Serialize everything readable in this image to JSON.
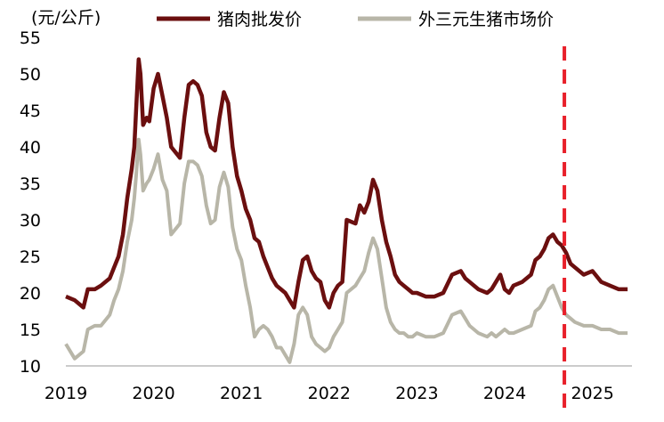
{
  "chart_data": {
    "type": "line",
    "ylabel": "(元/公斤)",
    "ylim": [
      10,
      55
    ],
    "yticks": [
      10,
      15,
      20,
      25,
      30,
      35,
      40,
      45,
      50,
      55
    ],
    "xlim": [
      2019.0,
      2025.45
    ],
    "xticks": [
      "2019",
      "2020",
      "2021",
      "2022",
      "2023",
      "2024",
      "2025"
    ],
    "grid": false,
    "legend_position": "top",
    "series": [
      {
        "name": "猪肉批发价",
        "color": "#6b0f0f",
        "x": [
          2019.0,
          2019.1,
          2019.2,
          2019.25,
          2019.33,
          2019.4,
          2019.5,
          2019.55,
          2019.6,
          2019.65,
          2019.7,
          2019.75,
          2019.78,
          2019.8,
          2019.83,
          2019.85,
          2019.88,
          2019.92,
          2019.95,
          2020.0,
          2020.05,
          2020.1,
          2020.15,
          2020.2,
          2020.3,
          2020.35,
          2020.4,
          2020.45,
          2020.5,
          2020.55,
          2020.6,
          2020.65,
          2020.7,
          2020.75,
          2020.8,
          2020.85,
          2020.9,
          2020.95,
          2021.0,
          2021.05,
          2021.1,
          2021.15,
          2021.2,
          2021.25,
          2021.3,
          2021.35,
          2021.4,
          2021.45,
          2021.5,
          2021.55,
          2021.6,
          2021.65,
          2021.7,
          2021.75,
          2021.8,
          2021.85,
          2021.9,
          2021.95,
          2022.0,
          2022.05,
          2022.1,
          2022.15,
          2022.2,
          2022.3,
          2022.35,
          2022.4,
          2022.45,
          2022.5,
          2022.55,
          2022.6,
          2022.65,
          2022.7,
          2022.75,
          2022.8,
          2022.85,
          2022.9,
          2022.95,
          2023.0,
          2023.1,
          2023.2,
          2023.3,
          2023.4,
          2023.5,
          2023.55,
          2023.6,
          2023.7,
          2023.8,
          2023.85,
          2023.9,
          2023.95,
          2024.0,
          2024.05,
          2024.1,
          2024.2,
          2024.3,
          2024.35,
          2024.4,
          2024.45,
          2024.5,
          2024.55,
          2024.6,
          2024.65,
          2024.7,
          2024.75,
          2024.8,
          2024.9,
          2025.0,
          2025.1,
          2025.2,
          2025.3,
          2025.4
        ],
        "y": [
          19.5,
          19.0,
          18.0,
          20.5,
          20.5,
          21.0,
          22.0,
          23.5,
          25.0,
          28.0,
          33.0,
          37.0,
          40.0,
          45.0,
          52.0,
          50.0,
          43.0,
          44.0,
          43.5,
          48.0,
          50.0,
          47.0,
          44.0,
          40.0,
          38.5,
          44.0,
          48.5,
          49.0,
          48.5,
          47.0,
          42.0,
          40.0,
          39.5,
          44.0,
          47.5,
          46.0,
          40.0,
          36.0,
          34.0,
          31.5,
          30.0,
          27.5,
          27.0,
          25.0,
          23.5,
          22.0,
          21.0,
          20.5,
          20.0,
          19.0,
          18.0,
          21.5,
          24.5,
          25.0,
          23.0,
          22.0,
          21.5,
          19.0,
          18.0,
          20.0,
          21.0,
          21.5,
          30.0,
          29.5,
          32.0,
          31.0,
          32.5,
          35.5,
          34.0,
          30.0,
          27.0,
          25.0,
          22.5,
          21.5,
          21.0,
          20.5,
          20.0,
          20.0,
          19.5,
          19.5,
          20.0,
          22.5,
          23.0,
          22.0,
          21.5,
          20.5,
          20.0,
          20.5,
          21.5,
          22.5,
          20.5,
          20.0,
          21.0,
          21.5,
          22.5,
          24.5,
          25.0,
          26.0,
          27.5,
          28.0,
          27.0,
          26.5,
          25.5,
          24.0,
          23.5,
          22.5,
          23.0,
          21.5,
          21.0,
          20.5,
          20.5
        ]
      },
      {
        "name": "外三元生猪市场价",
        "color": "#b8b6a8",
        "x": [
          2019.0,
          2019.1,
          2019.2,
          2019.25,
          2019.33,
          2019.4,
          2019.5,
          2019.55,
          2019.6,
          2019.65,
          2019.7,
          2019.75,
          2019.78,
          2019.8,
          2019.83,
          2019.85,
          2019.88,
          2019.92,
          2019.95,
          2020.0,
          2020.05,
          2020.1,
          2020.15,
          2020.2,
          2020.3,
          2020.35,
          2020.4,
          2020.45,
          2020.5,
          2020.55,
          2020.6,
          2020.65,
          2020.7,
          2020.75,
          2020.8,
          2020.85,
          2020.9,
          2020.95,
          2021.0,
          2021.05,
          2021.1,
          2021.15,
          2021.2,
          2021.25,
          2021.3,
          2021.35,
          2021.4,
          2021.45,
          2021.5,
          2021.55,
          2021.6,
          2021.65,
          2021.7,
          2021.75,
          2021.8,
          2021.85,
          2021.9,
          2021.95,
          2022.0,
          2022.05,
          2022.1,
          2022.15,
          2022.2,
          2022.3,
          2022.35,
          2022.4,
          2022.45,
          2022.5,
          2022.55,
          2022.6,
          2022.65,
          2022.7,
          2022.75,
          2022.8,
          2022.85,
          2022.9,
          2022.95,
          2023.0,
          2023.1,
          2023.2,
          2023.3,
          2023.4,
          2023.5,
          2023.55,
          2023.6,
          2023.7,
          2023.8,
          2023.85,
          2023.9,
          2023.95,
          2024.0,
          2024.05,
          2024.1,
          2024.2,
          2024.3,
          2024.35,
          2024.4,
          2024.45,
          2024.5,
          2024.55,
          2024.6,
          2024.65,
          2024.7,
          2024.75,
          2024.8,
          2024.9,
          2025.0,
          2025.1,
          2025.2,
          2025.3,
          2025.4
        ],
        "y": [
          13.0,
          11.0,
          12.0,
          15.0,
          15.5,
          15.5,
          17.0,
          19.0,
          20.5,
          23.0,
          27.0,
          30.0,
          33.0,
          36.0,
          41.0,
          39.0,
          34.0,
          35.0,
          35.5,
          37.0,
          39.0,
          35.5,
          34.0,
          28.0,
          29.5,
          35.0,
          38.0,
          38.0,
          37.5,
          36.0,
          32.0,
          29.5,
          30.0,
          34.5,
          36.5,
          34.5,
          29.0,
          26.0,
          24.5,
          21.0,
          18.0,
          14.0,
          15.0,
          15.5,
          15.0,
          14.0,
          12.5,
          12.5,
          11.5,
          10.5,
          13.0,
          17.0,
          18.0,
          17.0,
          14.0,
          13.0,
          12.5,
          12.0,
          12.5,
          14.0,
          15.0,
          16.0,
          20.0,
          21.0,
          22.0,
          23.0,
          25.5,
          27.5,
          26.0,
          22.0,
          18.0,
          16.0,
          15.0,
          14.5,
          14.5,
          14.0,
          14.0,
          14.5,
          14.0,
          14.0,
          14.5,
          17.0,
          17.5,
          16.5,
          15.5,
          14.5,
          14.0,
          14.5,
          14.0,
          14.5,
          15.0,
          14.5,
          14.5,
          15.0,
          15.5,
          17.5,
          18.0,
          19.0,
          20.5,
          21.0,
          19.5,
          18.0,
          17.0,
          16.5,
          16.0,
          15.5,
          15.5,
          15.0,
          15.0,
          14.5,
          14.5
        ]
      }
    ],
    "marker_line_x": 2024.68,
    "marker_line_color": "#e8202a"
  }
}
